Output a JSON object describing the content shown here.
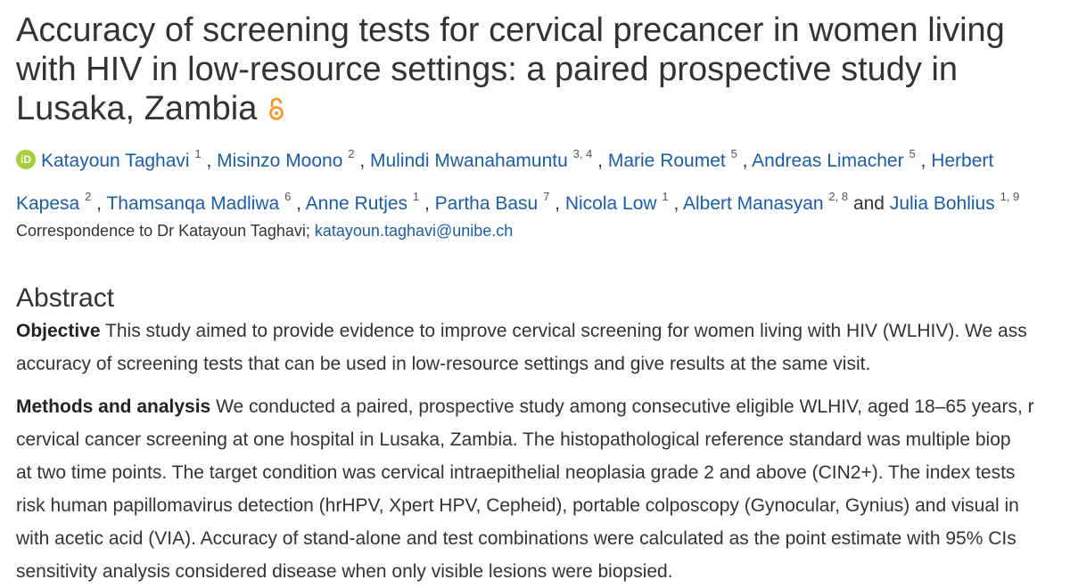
{
  "article": {
    "title": "Accuracy of screening tests for cervical precancer in women living with HIV in low-resource settings: a paired prospective study in Lusaka, Zambia",
    "open_access_icon": "open-access-icon"
  },
  "authors": [
    {
      "name": "Katayoun Taghavi",
      "affil": "1",
      "orcid": true
    },
    {
      "name": "Misinzo Moono",
      "affil": "2"
    },
    {
      "name": "Mulindi Mwanahamuntu",
      "affil": "3, 4"
    },
    {
      "name": "Marie Roumet",
      "affil": "5"
    },
    {
      "name": "Andreas Limacher",
      "affil": "5"
    },
    {
      "name": "Herbert Kapesa",
      "affil": "2"
    },
    {
      "name": "Thamsanqa Madliwa",
      "affil": "6"
    },
    {
      "name": "Anne Rutjes",
      "affil": "1"
    },
    {
      "name": "Partha Basu",
      "affil": "7"
    },
    {
      "name": "Nicola Low",
      "affil": "1"
    },
    {
      "name": "Albert Manasyan",
      "affil": "2, 8"
    },
    {
      "name": "Julia Bohlius",
      "affil": "1, 9"
    }
  ],
  "authors_text": {
    "and": "and",
    "sep": ","
  },
  "orcid_label": "iD",
  "correspondence": {
    "prefix": "Correspondence to Dr Katayoun Taghavi;",
    "email": "katayoun.taghavi@unibe.ch"
  },
  "abstract": {
    "heading": "Abstract",
    "objective_label": "Objective",
    "objective_lines": [
      "This study aimed to provide evidence to improve cervical screening for women living with HIV (WLHIV). We ass",
      "accuracy of screening tests that can be used in low-resource settings and give results at the same visit."
    ],
    "methods_label": "Methods and analysis",
    "methods_lines": [
      "We conducted a paired, prospective study among consecutive eligible WLHIV, aged 18–65 years, r",
      "cervical cancer screening at one hospital in Lusaka, Zambia. The histopathological reference standard was multiple biop",
      "at two time points. The target condition was cervical intraepithelial neoplasia grade 2 and above (CIN2+). The index tests",
      "risk human papillomavirus detection (hrHPV, Xpert HPV, Cepheid), portable colposcopy (Gynocular, Gynius) and visual in",
      "with acetic acid (VIA). Accuracy of stand-alone and test combinations were calculated as the point estimate with 95% CIs",
      "sensitivity analysis considered disease when only visible lesions were biopsied."
    ]
  }
}
